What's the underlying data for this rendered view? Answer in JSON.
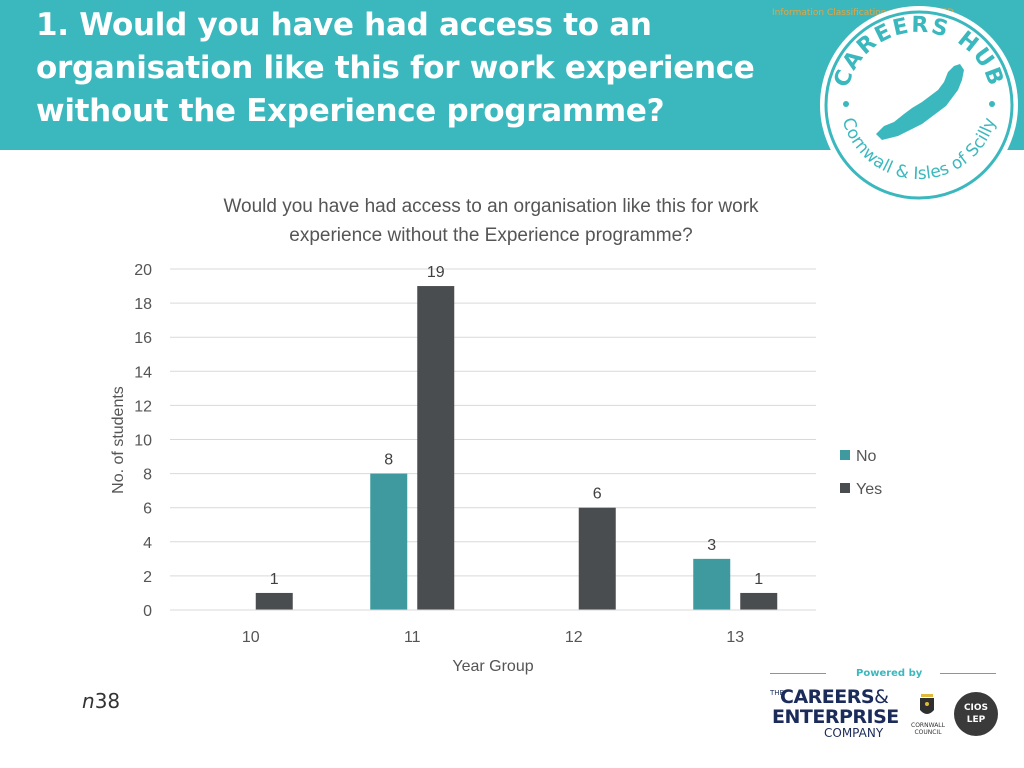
{
  "header": {
    "title": "1. Would you have had access to an organisation like this for work experience without the Experience programme?",
    "classification": "Information Classification: CONTROLLED",
    "color": "#3bb8be"
  },
  "hub_logo": {
    "top_text": "CAREERS HUB",
    "bottom_text": "Cornwall & Isles of Scilly",
    "icon": "cornwall-map-icon"
  },
  "chart_data": {
    "type": "bar",
    "title": "Would you have had access to an organisation like this for work experience without the Experience programme?",
    "title_lines": [
      "Would you have had access to an organisation like this for work",
      "experience without the Experience programme?"
    ],
    "xlabel": "Year Group",
    "ylabel": "No. of students",
    "categories": [
      "10",
      "11",
      "12",
      "13"
    ],
    "series": [
      {
        "name": "No",
        "color": "#3f9aa0",
        "values": [
          0,
          8,
          0,
          3
        ]
      },
      {
        "name": "Yes",
        "color": "#4a4d50",
        "values": [
          1,
          19,
          6,
          1
        ]
      }
    ],
    "data_labels": [
      {
        "series": "No",
        "values": [
          null,
          "8",
          null,
          "3"
        ]
      },
      {
        "series": "Yes",
        "values": [
          "1",
          "19",
          "6",
          "1"
        ]
      }
    ],
    "ylim": [
      0,
      20
    ],
    "yticks": [
      0,
      2,
      4,
      6,
      8,
      10,
      12,
      14,
      16,
      18,
      20
    ],
    "grid": true,
    "legend": "right"
  },
  "sample": {
    "prefix": "n",
    "value": "38"
  },
  "footer": {
    "powered_by": "Powered by",
    "cec": {
      "the": "THE",
      "line1": "CAREERS",
      "amp": "&",
      "line2": "ENTERPRISE",
      "line3": "COMPANY"
    },
    "council": "CORNWALL COUNCIL",
    "lep": {
      "line1": "CIOS",
      "line2": "LEP"
    }
  }
}
